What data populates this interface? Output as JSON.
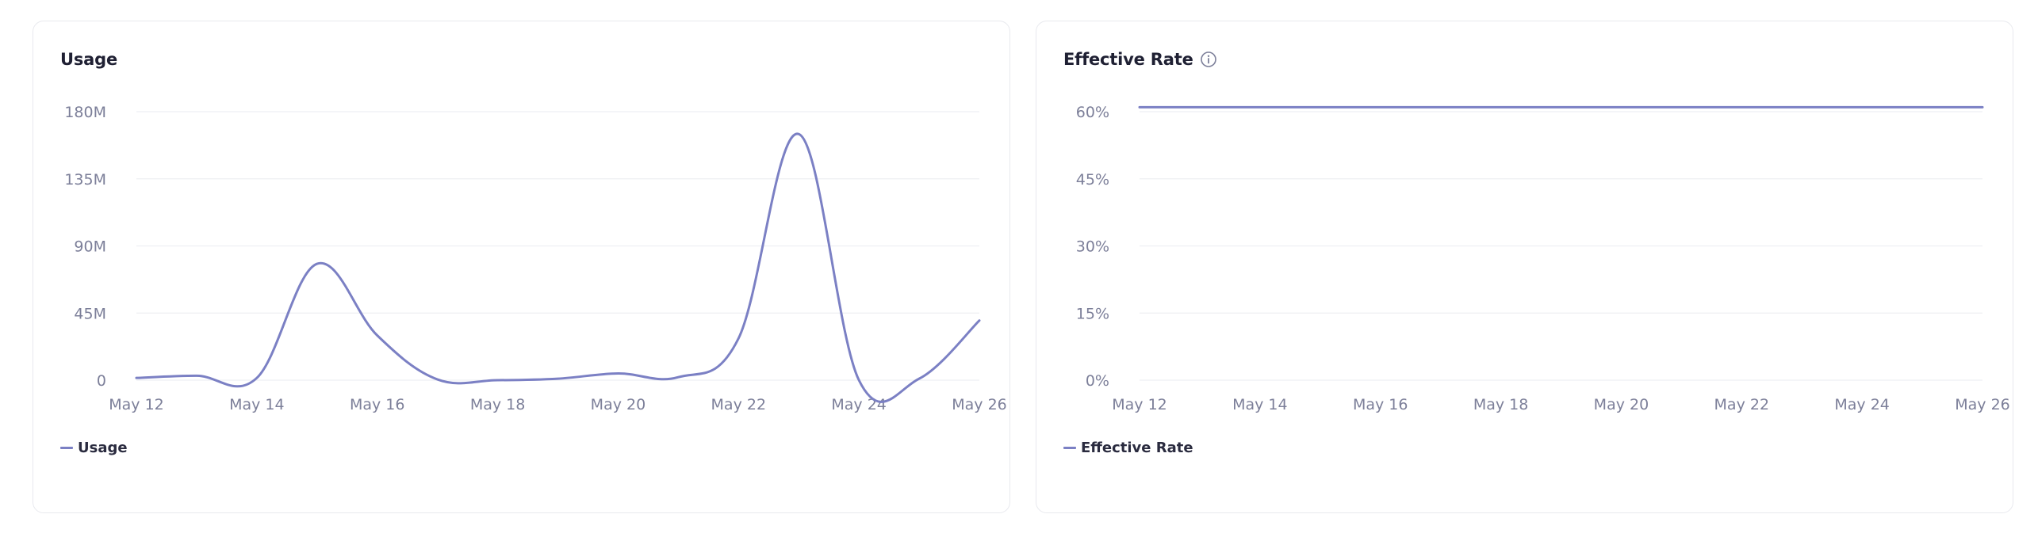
{
  "colors": {
    "series": "#7b80c4",
    "grid": "#eeeff3",
    "tick": "#7c7f99"
  },
  "chart_data": [
    {
      "type": "line",
      "title": "Usage",
      "xlabel": "",
      "ylabel": "",
      "x": [
        "May 12",
        "May 13",
        "May 14",
        "May 15",
        "May 16",
        "May 17",
        "May 18",
        "May 19",
        "May 20",
        "May 21",
        "May 22",
        "May 23",
        "May 24",
        "May 25",
        "May 26"
      ],
      "x_ticks": [
        "May 12",
        "May 14",
        "May 16",
        "May 18",
        "May 20",
        "May 22",
        "May 24",
        "May 26"
      ],
      "y_ticks": [
        "0",
        "45M",
        "90M",
        "135M",
        "180M"
      ],
      "ylim": [
        0,
        180000000
      ],
      "grid": true,
      "legend": "bottom-left",
      "series": [
        {
          "name": "Usage",
          "values": [
            1500000,
            3000000,
            1500000,
            78000000,
            30000000,
            500000,
            0,
            1000000,
            4500000,
            2000000,
            28000000,
            165000000,
            0,
            1000000,
            40000000
          ]
        }
      ]
    },
    {
      "type": "line",
      "title": "Effective Rate",
      "xlabel": "",
      "ylabel": "",
      "x": [
        "May 12",
        "May 13",
        "May 14",
        "May 15",
        "May 16",
        "May 17",
        "May 18",
        "May 19",
        "May 20",
        "May 21",
        "May 22",
        "May 23",
        "May 24",
        "May 25",
        "May 26"
      ],
      "x_ticks": [
        "May 12",
        "May 14",
        "May 16",
        "May 18",
        "May 20",
        "May 22",
        "May 24",
        "May 26"
      ],
      "y_ticks": [
        "0%",
        "15%",
        "30%",
        "45%",
        "60%"
      ],
      "ylim": [
        0,
        60
      ],
      "grid": true,
      "legend": "bottom-left",
      "series": [
        {
          "name": "Effective Rate",
          "values": [
            61,
            61,
            61,
            61,
            61,
            61,
            61,
            61,
            61,
            61,
            61,
            61,
            61,
            61,
            61
          ]
        }
      ]
    }
  ]
}
